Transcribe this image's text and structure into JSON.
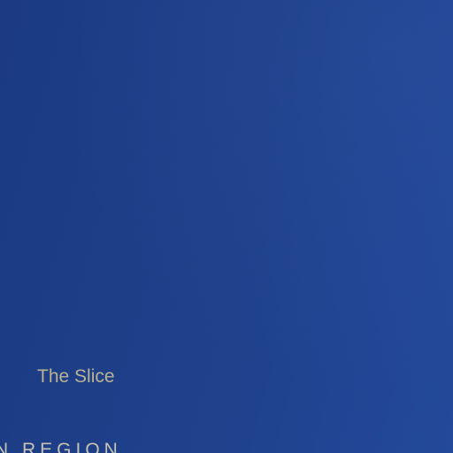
{
  "hero": {
    "subtitle": "The Slice",
    "region_label": "N REGION"
  },
  "colors": {
    "background_start": "#1c3a84",
    "background_end": "#23499a",
    "subtitle_text": "#b9b394",
    "region_text": "#c6c3b5"
  }
}
